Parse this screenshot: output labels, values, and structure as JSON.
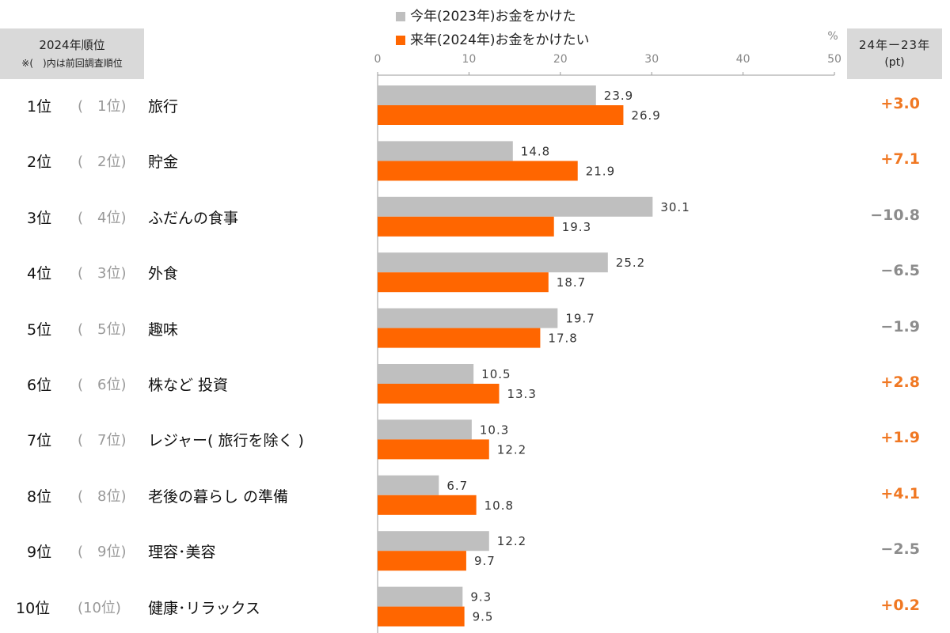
{
  "header": {
    "rank_title": "2024年順位",
    "rank_note": "※(　)内は前回調査順位",
    "diff_title": "24年ー23年",
    "diff_unit": "(pt)",
    "percent_unit": "%"
  },
  "legend": [
    {
      "label": "今年(2023年)お金をかけた",
      "color": "#bfbfbf"
    },
    {
      "label": "来年(2024年)お金をかけたい",
      "color": "#ff6600"
    }
  ],
  "colors": {
    "positive": "#f07823",
    "negative": "#8c8c8c"
  },
  "chart_data": {
    "type": "bar",
    "orientation": "horizontal",
    "xlim": [
      0,
      50
    ],
    "ticks": [
      "0",
      "10",
      "20",
      "30",
      "40",
      "50"
    ],
    "unit": "%",
    "categories": [
      "旅行",
      "貯金",
      "ふだんの食事",
      "外食",
      "趣味",
      "株など投資",
      "レジャー(旅行を除く)",
      "老後の暮らしの準備",
      "理容･美容",
      "健康･リラックス"
    ],
    "series": [
      {
        "name": "今年(2023年)お金をかけた",
        "values": [
          23.9,
          14.8,
          30.1,
          25.2,
          19.7,
          10.5,
          10.3,
          6.7,
          12.2,
          9.3
        ]
      },
      {
        "name": "来年(2024年)お金をかけたい",
        "values": [
          26.9,
          21.9,
          19.3,
          18.7,
          17.8,
          13.3,
          12.2,
          10.8,
          9.7,
          9.5
        ]
      }
    ],
    "value_labels_2023": [
      "23.9",
      "14.8",
      "30.1",
      "25.2",
      "19.7",
      "10.5",
      "10.3",
      "6.7",
      "12.2",
      "9.3"
    ],
    "value_labels_2024": [
      "26.9",
      "21.9",
      "19.3",
      "18.7",
      "17.8",
      "13.3",
      "12.2",
      "10.8",
      "9.7",
      "9.5"
    ]
  },
  "rows": [
    {
      "rank": "1位",
      "prev": "(　1位)",
      "label": "旅行",
      "diff": "+3.0",
      "positive": true
    },
    {
      "rank": "2位",
      "prev": "(　2位)",
      "label": "貯金",
      "diff": "+7.1",
      "positive": true
    },
    {
      "rank": "3位",
      "prev": "(　4位)",
      "label": "ふだんの食事",
      "diff": "−10.8",
      "positive": false
    },
    {
      "rank": "4位",
      "prev": "(　3位)",
      "label": "外食",
      "diff": "−6.5",
      "positive": false
    },
    {
      "rank": "5位",
      "prev": "(　5位)",
      "label": "趣味",
      "diff": "−1.9",
      "positive": false
    },
    {
      "rank": "6位",
      "prev": "(　6位)",
      "label": "株など 投資",
      "diff": "+2.8",
      "positive": true
    },
    {
      "rank": "7位",
      "prev": "(　7位)",
      "label": "レジャー( 旅行を除く )",
      "diff": "+1.9",
      "positive": true
    },
    {
      "rank": "8位",
      "prev": "(　8位)",
      "label": "老後の暮らし の準備",
      "diff": "+4.1",
      "positive": true
    },
    {
      "rank": "9位",
      "prev": "(　9位)",
      "label": "理容･美容",
      "diff": "−2.5",
      "positive": false
    },
    {
      "rank": "10位",
      "prev": "(10位)",
      "label": "健康･リラックス",
      "diff": "+0.2",
      "positive": true
    }
  ]
}
